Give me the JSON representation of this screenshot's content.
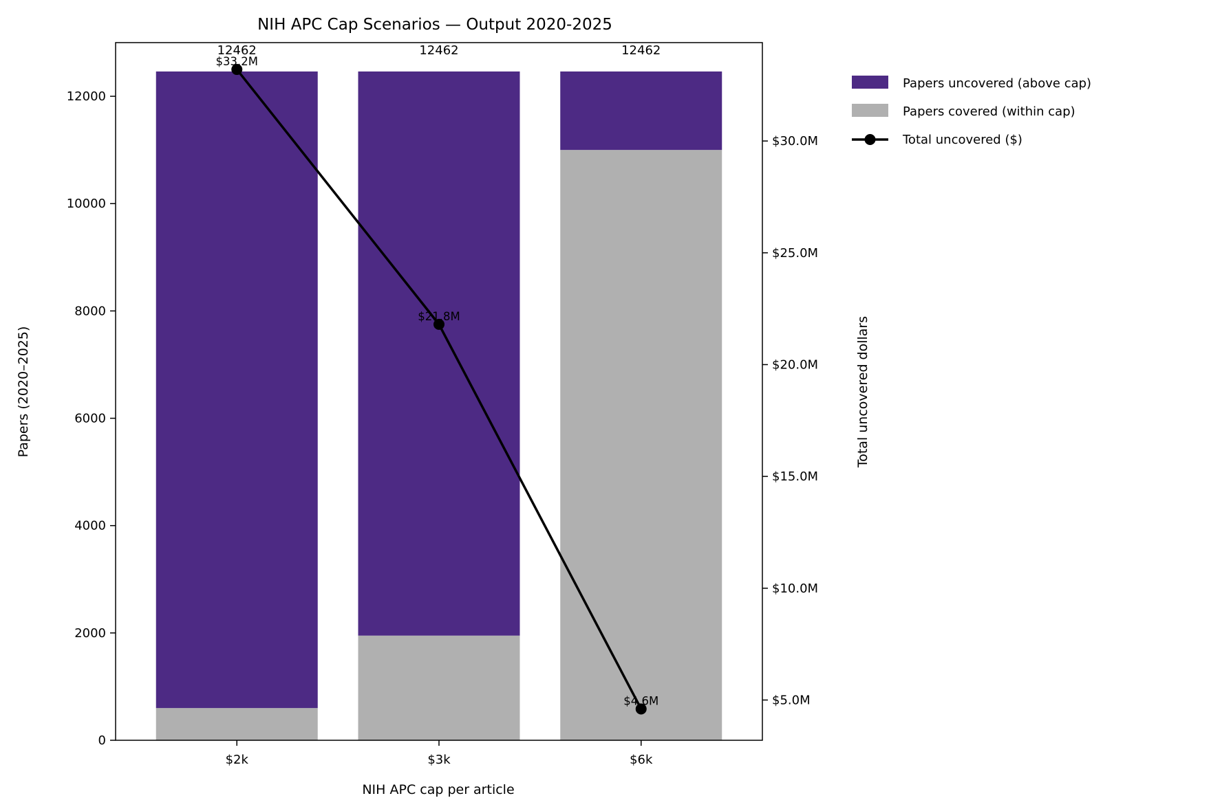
{
  "chart_data": {
    "type": "bar",
    "stacked": true,
    "title": "NIH APC Cap Scenarios — Output 2020-2025",
    "xlabel": "NIH APC cap per article",
    "ylabel": "Papers (2020–2025)",
    "y2label": "Total uncovered dollars",
    "categories": [
      "$2k",
      "$3k",
      "$6k"
    ],
    "ylim": [
      0,
      13000
    ],
    "yticks": [
      0,
      2000,
      4000,
      6000,
      8000,
      10000,
      12000
    ],
    "y2lim": [
      3.2,
      34.4
    ],
    "y2ticks": [
      5,
      10,
      15,
      20,
      25,
      30
    ],
    "y2tick_labels": [
      "$5.0M",
      "$10.0M",
      "$15.0M",
      "$20.0M",
      "$25.0M",
      "$30.0M"
    ],
    "series": [
      {
        "name": "Papers covered (within cap)",
        "color": "#b0b0b0",
        "values": [
          600,
          1950,
          11000
        ]
      },
      {
        "name": "Papers uncovered (above cap)",
        "color": "#4d2a84",
        "values": [
          11862,
          10512,
          1462
        ]
      }
    ],
    "totals": [
      12462,
      12462,
      12462
    ],
    "total_labels": [
      "12462",
      "12462",
      "12462"
    ],
    "line_series": {
      "name": "Total uncovered ($)",
      "color": "#000000",
      "axis": "right",
      "values": [
        33.2,
        21.8,
        4.6
      ],
      "labels": [
        "$33.2M",
        "$21.8M",
        "$4.6M"
      ]
    },
    "legend": {
      "position": "outside-right-top",
      "entries": [
        "Papers uncovered (above cap)",
        "Papers covered (within cap)",
        "Total uncovered ($)"
      ]
    },
    "grid": false
  }
}
